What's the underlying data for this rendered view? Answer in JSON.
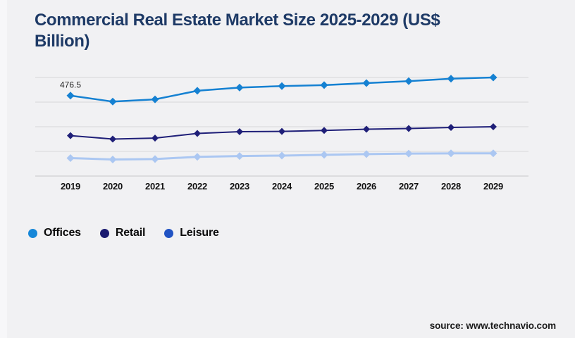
{
  "page": {
    "background_color": "#f1f1f3"
  },
  "header": {
    "title": "Commercial Real Estate Market Size 2025-2029 (US$ Billion)",
    "title_color": "#1e3a66"
  },
  "chart_data": {
    "type": "line",
    "title": "Commercial Real Estate Market Size 2025-2029 (US$ Billion)",
    "categories": [
      "2019",
      "2020",
      "2021",
      "2022",
      "2023",
      "2024",
      "2025",
      "2026",
      "2027",
      "2028",
      "2029"
    ],
    "series": [
      {
        "name": "Offices",
        "color": "#1581d2",
        "legend_color": "#1687d8",
        "marker": "diamond",
        "line_width": 2.5,
        "marker_size": 5.5,
        "values": [
          476.5,
          452,
          461,
          496,
          509,
          515,
          519,
          527,
          535,
          545,
          550
        ]
      },
      {
        "name": "Retail",
        "color": "#1f1f78",
        "legend_color": "#1a1a70",
        "marker": "diamond",
        "line_width": 2,
        "marker_size": 5,
        "values": [
          314,
          300,
          304,
          323,
          330,
          331,
          335,
          340,
          343,
          347,
          350
        ]
      },
      {
        "name": "Leisure",
        "color": "#abc7f2",
        "legend_color": "#2153c3",
        "marker": "diamond",
        "line_width": 3,
        "marker_size": 5.5,
        "values": [
          223,
          217,
          219,
          228,
          231,
          233,
          236,
          239,
          241,
          242,
          242
        ]
      }
    ],
    "data_labels": [
      {
        "series": "Offices",
        "category": "2019",
        "text": "476.5"
      }
    ],
    "ylim": [
      150,
      550
    ],
    "gridline_interval": 100,
    "grid": true,
    "y_axis_labels_visible": false,
    "legend_position": "bottom-left",
    "units": "US$ Billion"
  },
  "legend": {
    "items": [
      {
        "label": "Offices",
        "color": "#1687d8"
      },
      {
        "label": "Retail",
        "color": "#1a1a70"
      },
      {
        "label": "Leisure",
        "color": "#2153c3"
      }
    ]
  },
  "footer": {
    "source_label": "source: www.technavio.com"
  }
}
